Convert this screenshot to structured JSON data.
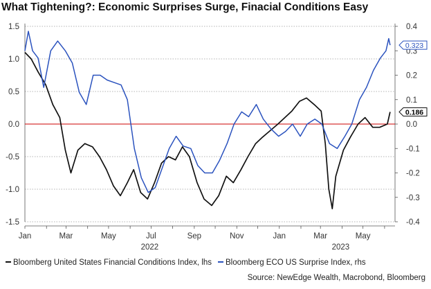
{
  "chart_data": {
    "type": "line",
    "title": "What Tightening?: Economic Surprises Surge, Finacial Conditions Easy",
    "x_ticks": [
      "Jan",
      "Mar",
      "May",
      "Jul",
      "Sep",
      "Nov",
      "Jan",
      "Mar",
      "May"
    ],
    "x_year_labels": [
      "2022",
      "2023"
    ],
    "y_left": {
      "ticks": [
        "1.5",
        "1.0",
        "0.5",
        "0.0",
        "-0.5",
        "-1.0",
        "-1.5"
      ],
      "ylim": [
        -1.5,
        1.5
      ]
    },
    "y_right": {
      "ticks": [
        "0.4",
        "0.3",
        "0.2",
        "0.1",
        "0.0",
        "-0.1",
        "-0.2",
        "-0.3",
        "-0.4"
      ],
      "ylim": [
        -0.4,
        0.4
      ]
    },
    "grid": "horizontal-dotted",
    "zero_line_color": "#cc0000",
    "series": [
      {
        "name": "Bloomberg United States Financial Conditions Index, lhs",
        "axis": "left",
        "color": "#111111",
        "last_value_label": "0.186",
        "points": [
          [
            "2022-01-01",
            1.1
          ],
          [
            "2022-01-10",
            1.0
          ],
          [
            "2022-01-20",
            0.8
          ],
          [
            "2022-01-31",
            0.6
          ],
          [
            "2022-02-10",
            0.3
          ],
          [
            "2022-02-20",
            0.1
          ],
          [
            "2022-02-28",
            -0.4
          ],
          [
            "2022-03-08",
            -0.75
          ],
          [
            "2022-03-18",
            -0.4
          ],
          [
            "2022-03-28",
            -0.3
          ],
          [
            "2022-04-08",
            -0.35
          ],
          [
            "2022-04-18",
            -0.5
          ],
          [
            "2022-04-28",
            -0.7
          ],
          [
            "2022-05-08",
            -0.95
          ],
          [
            "2022-05-18",
            -1.1
          ],
          [
            "2022-05-28",
            -0.9
          ],
          [
            "2022-06-06",
            -0.7
          ],
          [
            "2022-06-16",
            -1.05
          ],
          [
            "2022-06-26",
            -1.15
          ],
          [
            "2022-07-06",
            -0.9
          ],
          [
            "2022-07-16",
            -0.6
          ],
          [
            "2022-07-26",
            -0.5
          ],
          [
            "2022-08-05",
            -0.55
          ],
          [
            "2022-08-15",
            -0.35
          ],
          [
            "2022-08-25",
            -0.5
          ],
          [
            "2022-09-05",
            -0.9
          ],
          [
            "2022-09-15",
            -1.15
          ],
          [
            "2022-09-26",
            -1.25
          ],
          [
            "2022-10-06",
            -1.1
          ],
          [
            "2022-10-17",
            -0.8
          ],
          [
            "2022-10-27",
            -0.9
          ],
          [
            "2022-11-07",
            -0.7
          ],
          [
            "2022-11-17",
            -0.5
          ],
          [
            "2022-11-28",
            -0.3
          ],
          [
            "2022-12-08",
            -0.2
          ],
          [
            "2022-12-19",
            -0.1
          ],
          [
            "2022-12-30",
            0.0
          ],
          [
            "2023-01-09",
            0.1
          ],
          [
            "2023-01-19",
            0.2
          ],
          [
            "2023-01-30",
            0.35
          ],
          [
            "2023-02-09",
            0.4
          ],
          [
            "2023-02-20",
            0.3
          ],
          [
            "2023-03-02",
            0.2
          ],
          [
            "2023-03-08",
            -0.3
          ],
          [
            "2023-03-13",
            -1.0
          ],
          [
            "2023-03-18",
            -1.3
          ],
          [
            "2023-03-23",
            -0.8
          ],
          [
            "2023-04-03",
            -0.4
          ],
          [
            "2023-04-13",
            -0.2
          ],
          [
            "2023-04-24",
            0.0
          ],
          [
            "2023-05-04",
            0.1
          ],
          [
            "2023-05-15",
            -0.05
          ],
          [
            "2023-05-25",
            -0.05
          ],
          [
            "2023-06-05",
            0.0
          ],
          [
            "2023-06-09",
            0.186
          ]
        ]
      },
      {
        "name": "Bloomberg ECO US Surprise Index, rhs",
        "axis": "right",
        "color": "#2a52be",
        "last_value_label": "0.323",
        "points": [
          [
            "2022-01-01",
            0.3
          ],
          [
            "2022-01-06",
            0.38
          ],
          [
            "2022-01-12",
            0.3
          ],
          [
            "2022-01-20",
            0.27
          ],
          [
            "2022-01-28",
            0.15
          ],
          [
            "2022-02-07",
            0.3
          ],
          [
            "2022-02-17",
            0.34
          ],
          [
            "2022-02-28",
            0.3
          ],
          [
            "2022-03-10",
            0.25
          ],
          [
            "2022-03-20",
            0.13
          ],
          [
            "2022-03-30",
            0.08
          ],
          [
            "2022-04-09",
            0.2
          ],
          [
            "2022-04-19",
            0.2
          ],
          [
            "2022-04-29",
            0.18
          ],
          [
            "2022-05-09",
            0.17
          ],
          [
            "2022-05-19",
            0.16
          ],
          [
            "2022-05-28",
            0.1
          ],
          [
            "2022-06-07",
            -0.1
          ],
          [
            "2022-06-17",
            -0.22
          ],
          [
            "2022-06-27",
            -0.28
          ],
          [
            "2022-07-07",
            -0.26
          ],
          [
            "2022-07-17",
            -0.18
          ],
          [
            "2022-07-27",
            -0.1
          ],
          [
            "2022-08-06",
            -0.05
          ],
          [
            "2022-08-16",
            -0.09
          ],
          [
            "2022-08-27",
            -0.1
          ],
          [
            "2022-09-06",
            -0.17
          ],
          [
            "2022-09-16",
            -0.2
          ],
          [
            "2022-09-27",
            -0.2
          ],
          [
            "2022-10-07",
            -0.15
          ],
          [
            "2022-10-18",
            -0.08
          ],
          [
            "2022-10-28",
            0.0
          ],
          [
            "2022-11-08",
            0.05
          ],
          [
            "2022-11-18",
            0.03
          ],
          [
            "2022-11-29",
            0.08
          ],
          [
            "2022-12-09",
            0.02
          ],
          [
            "2022-12-20",
            -0.02
          ],
          [
            "2022-12-31",
            -0.05
          ],
          [
            "2023-01-10",
            -0.03
          ],
          [
            "2023-01-20",
            0.0
          ],
          [
            "2023-01-31",
            -0.05
          ],
          [
            "2023-02-10",
            0.0
          ],
          [
            "2023-02-21",
            0.02
          ],
          [
            "2023-03-03",
            0.0
          ],
          [
            "2023-03-14",
            -0.08
          ],
          [
            "2023-03-25",
            -0.1
          ],
          [
            "2023-04-05",
            -0.05
          ],
          [
            "2023-04-15",
            0.0
          ],
          [
            "2023-04-26",
            0.1
          ],
          [
            "2023-05-06",
            0.15
          ],
          [
            "2023-05-16",
            0.22
          ],
          [
            "2023-05-26",
            0.27
          ],
          [
            "2023-06-03",
            0.3
          ],
          [
            "2023-06-07",
            0.35
          ],
          [
            "2023-06-09",
            0.323
          ]
        ]
      }
    ],
    "source": "Source: NewEdge Wealth, Macrobond, Bloomberg"
  }
}
